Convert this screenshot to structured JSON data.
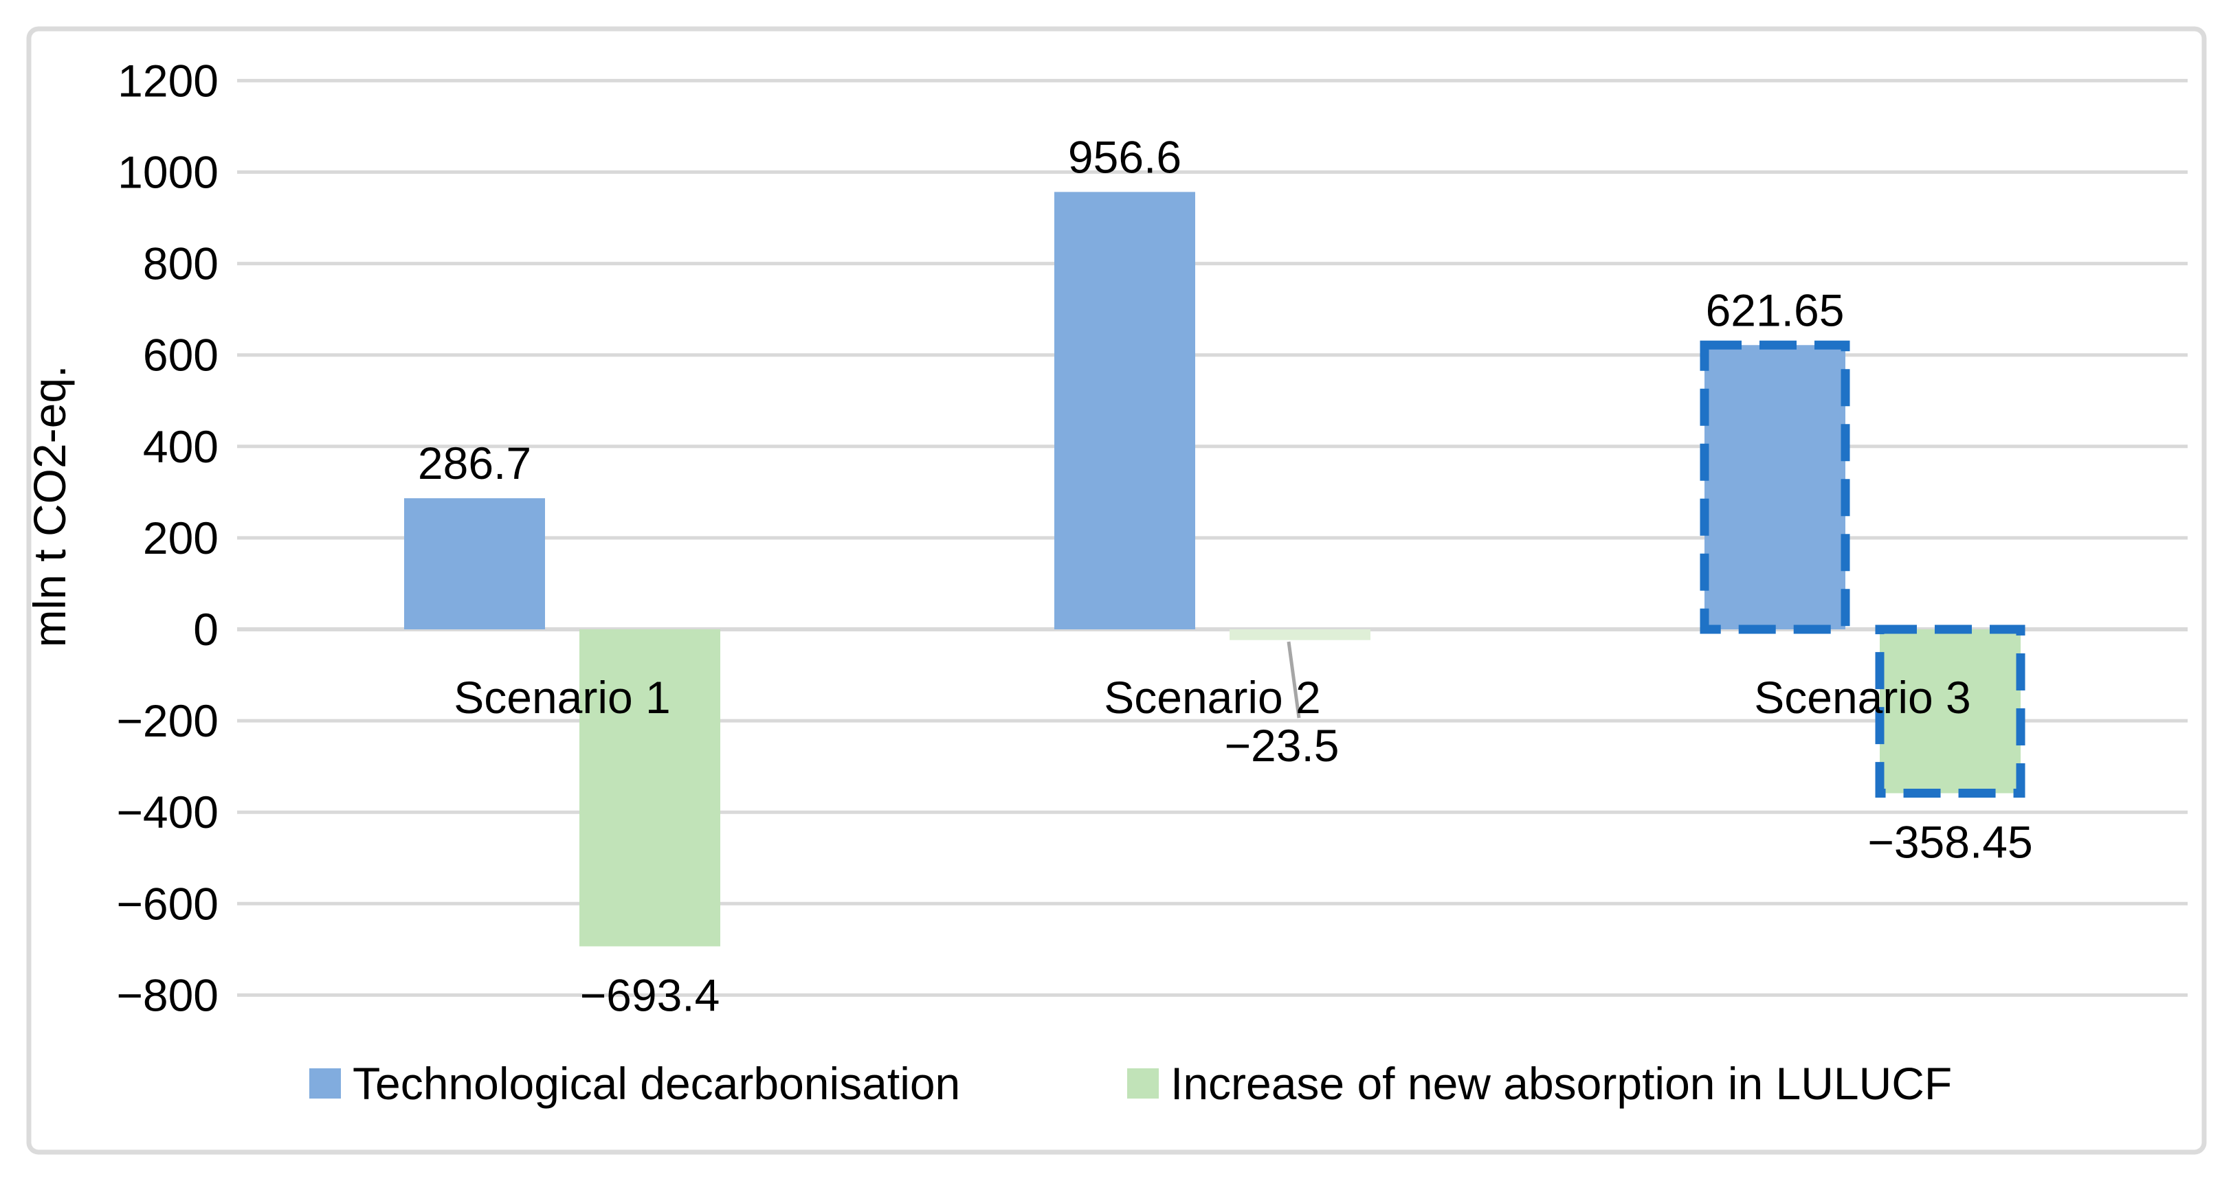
{
  "figure": {
    "border_color": "#DBDBDB",
    "background": "#FFFFFF"
  },
  "chart_data": {
    "type": "bar",
    "title": "",
    "ylabel": "mln t CO2-eq.",
    "xlabel": "",
    "ylim": [
      -800,
      1200
    ],
    "grid": true,
    "gridline_color": "#D9D9D9",
    "leader_line_color": "#A6A6A6",
    "legend_position": "bottom",
    "yticks": [
      {
        "value": 1200,
        "label": "1200"
      },
      {
        "value": 1000,
        "label": "1000"
      },
      {
        "value": 800,
        "label": "800"
      },
      {
        "value": 600,
        "label": "600"
      },
      {
        "value": 400,
        "label": "400"
      },
      {
        "value": 200,
        "label": "200"
      },
      {
        "value": 0,
        "label": "0"
      },
      {
        "value": -200,
        "label": "−200"
      },
      {
        "value": -400,
        "label": "−400"
      },
      {
        "value": -600,
        "label": "−600"
      },
      {
        "value": -800,
        "label": "−800"
      }
    ],
    "categories": [
      "Scenario 1",
      "Scenario 2",
      "Scenario 3"
    ],
    "series": [
      {
        "name": "Technological decarbonisation",
        "fill": "#81ACDE",
        "values": [
          286.7,
          956.6,
          621.65
        ],
        "value_labels": [
          "286.7",
          "956.6",
          "621.65"
        ]
      },
      {
        "name": "Increase of new absorption in LULUCF",
        "fill": "#C1E3B8",
        "fills": [
          "#C1E3B8",
          "#DFEFD7",
          "#C1E3B8"
        ],
        "values": [
          -693.4,
          -23.5,
          -358.45
        ],
        "value_labels": [
          "−693.4",
          "−23.5",
          "−358.45"
        ]
      }
    ],
    "dashed_outline": {
      "category_index": 2,
      "color": "#1F72C6"
    },
    "callout_label": {
      "series_index": 1,
      "category_index": 1,
      "has_leader_line": true
    }
  }
}
